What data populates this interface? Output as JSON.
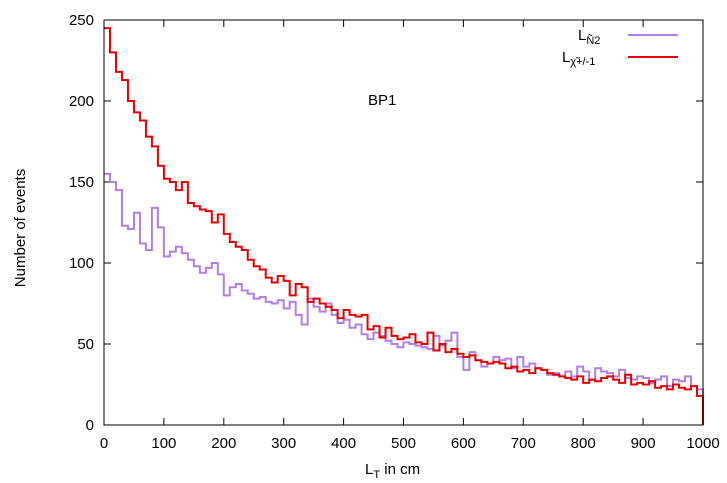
{
  "chart_data": {
    "type": "line",
    "xlabel_main": "L",
    "xlabel_sub": "T",
    "xlabel_rest": " in cm",
    "ylabel": "Number of events",
    "annotation": "BP1",
    "xlim": [
      0,
      1000
    ],
    "ylim": [
      0,
      250
    ],
    "xticks": [
      0,
      100,
      200,
      300,
      400,
      500,
      600,
      700,
      800,
      900,
      1000
    ],
    "yticks": [
      0,
      50,
      100,
      150,
      200,
      250
    ],
    "grid": false,
    "legend_position": "top-right",
    "bin_width": 10,
    "x": [
      0,
      10,
      20,
      30,
      40,
      50,
      60,
      70,
      80,
      90,
      100,
      110,
      120,
      130,
      140,
      150,
      160,
      170,
      180,
      190,
      200,
      210,
      220,
      230,
      240,
      250,
      260,
      270,
      280,
      290,
      300,
      310,
      320,
      330,
      340,
      350,
      360,
      370,
      380,
      390,
      400,
      410,
      420,
      430,
      440,
      450,
      460,
      470,
      480,
      490,
      500,
      510,
      520,
      530,
      540,
      550,
      560,
      570,
      580,
      590,
      600,
      610,
      620,
      630,
      640,
      650,
      660,
      670,
      680,
      690,
      700,
      710,
      720,
      730,
      740,
      750,
      760,
      770,
      780,
      790,
      800,
      810,
      820,
      830,
      840,
      850,
      860,
      870,
      880,
      890,
      900,
      910,
      920,
      930,
      940,
      950,
      960,
      970,
      980,
      990
    ],
    "series": [
      {
        "name_main": "L",
        "name_sub": "Ñ2",
        "color": "#b07fe8",
        "values": [
          155,
          150,
          145,
          123,
          121,
          131,
          112,
          108,
          134,
          122,
          104,
          107,
          110,
          106,
          102,
          98,
          94,
          97,
          100,
          93,
          80,
          85,
          87,
          83,
          81,
          78,
          79,
          76,
          75,
          77,
          72,
          76,
          68,
          62,
          78,
          73,
          70,
          75,
          68,
          63,
          65,
          60,
          62,
          56,
          53,
          57,
          55,
          52,
          50,
          48,
          51,
          50,
          49,
          48,
          47,
          55,
          49,
          52,
          57,
          42,
          34,
          45,
          40,
          36,
          38,
          42,
          40,
          41,
          35,
          42,
          36,
          38,
          35,
          34,
          31,
          32,
          30,
          33,
          30,
          36,
          33,
          28,
          35,
          33,
          32,
          30,
          34,
          29,
          28,
          30,
          29,
          26,
          28,
          30,
          24,
          28,
          27,
          30,
          24,
          22
        ]
      },
      {
        "name_main": "L",
        "name_sub": "χ̃+/-1",
        "color": "#e80000",
        "values": [
          245,
          230,
          218,
          213,
          200,
          193,
          188,
          178,
          172,
          160,
          152,
          150,
          145,
          150,
          137,
          135,
          133,
          132,
          125,
          130,
          118,
          113,
          110,
          108,
          102,
          98,
          96,
          91,
          88,
          92,
          89,
          80,
          87,
          85,
          76,
          78,
          75,
          73,
          71,
          66,
          71,
          68,
          67,
          68,
          59,
          61,
          54,
          60,
          55,
          53,
          54,
          56,
          51,
          50,
          57,
          46,
          50,
          45,
          47,
          44,
          42,
          43,
          40,
          39,
          38,
          39,
          38,
          35,
          36,
          33,
          34,
          32,
          35,
          34,
          32,
          31,
          30,
          29,
          28,
          30,
          26,
          28,
          27,
          29,
          30,
          28,
          26,
          31,
          25,
          26,
          25,
          27,
          23,
          24,
          22,
          25,
          23,
          22,
          24,
          18
        ]
      }
    ]
  }
}
